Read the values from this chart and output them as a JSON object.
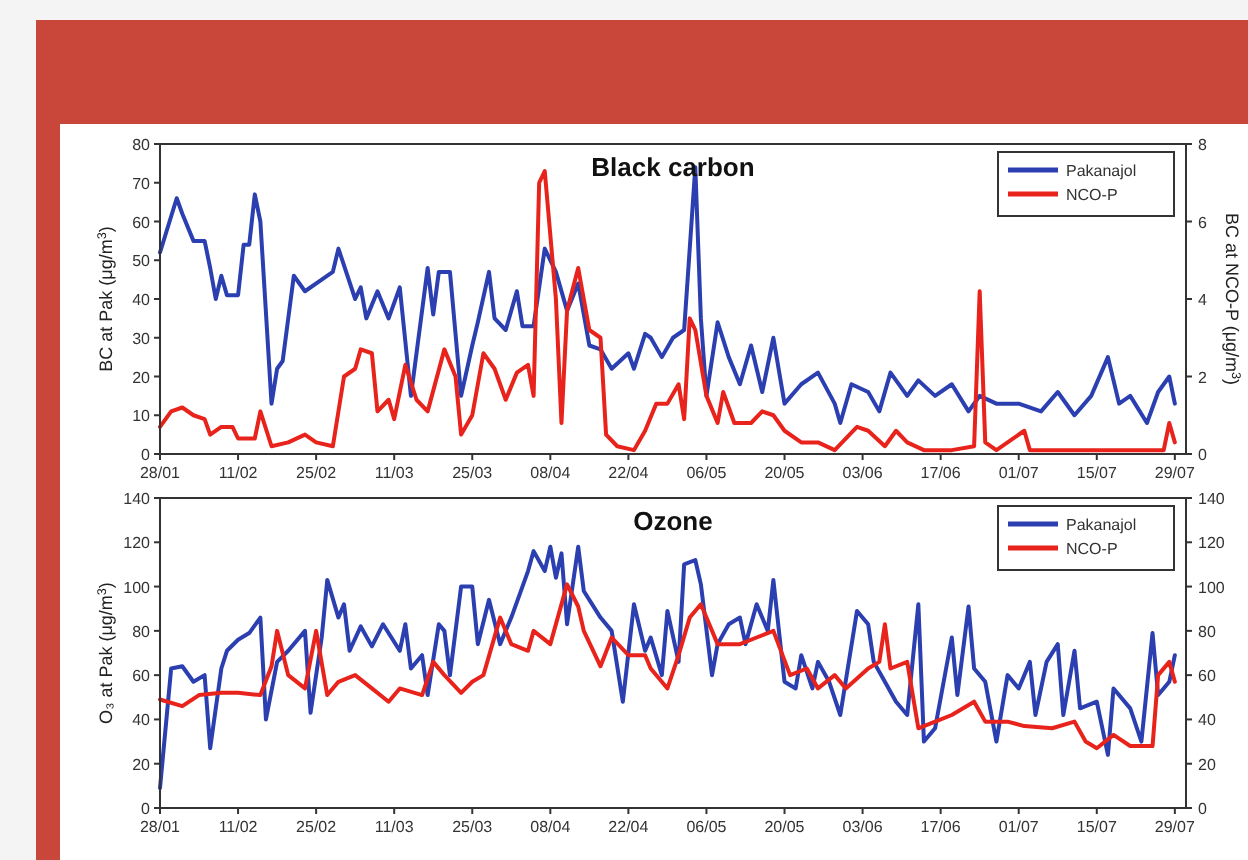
{
  "chart_data": [
    {
      "type": "line",
      "title": "Black carbon",
      "ylabel": "BC at Pak (μg/m$^{3}$)",
      "y2label": "BC at NCO-P (μg/m$^{3}$)",
      "legend": "top right",
      "xlim": [
        "--01-28",
        "--07-31"
      ],
      "xticks": [
        {
          "value": "--01-28",
          "label": "28/01"
        },
        {
          "value": "--02-11",
          "label": "11/02"
        },
        {
          "value": "--02-25",
          "label": "25/02"
        },
        {
          "value": "--03-11",
          "label": "11/03"
        },
        {
          "value": "--03-25",
          "label": "25/03"
        },
        {
          "value": "--04-08",
          "label": "08/04"
        },
        {
          "value": "--04-22",
          "label": "22/04"
        },
        {
          "value": "--05-06",
          "label": "06/05"
        },
        {
          "value": "--05-20",
          "label": "20/05"
        },
        {
          "value": "--06-03",
          "label": "03/06"
        },
        {
          "value": "--06-17",
          "label": "17/06"
        },
        {
          "value": "--07-01",
          "label": "01/07"
        },
        {
          "value": "--07-15",
          "label": "15/07"
        },
        {
          "value": "--07-29",
          "label": "29/07"
        }
      ],
      "ylim": [
        0,
        80
      ],
      "yticks": [
        0,
        10,
        20,
        30,
        40,
        50,
        60,
        70,
        80
      ],
      "y2lim": [
        0,
        8
      ],
      "y2ticks": [
        0,
        2,
        4,
        6,
        8
      ],
      "series": [
        {
          "name": "Pakanajol",
          "color": "#2b3fb0",
          "x": [
            "--01-28",
            "--01-31",
            "--02-01",
            "--02-03",
            "--02-05",
            "--02-06",
            "--02-07",
            "--02-08",
            "--02-09",
            "--02-11",
            "--02-12",
            "--02-13",
            "--02-14",
            "--02-15",
            "--02-17",
            "--02-18",
            "--02-19",
            "--02-21",
            "--02-23",
            "--02-26",
            "--02-28",
            "--03-01",
            "--03-04",
            "--03-05",
            "--03-06",
            "--03-08",
            "--03-10",
            "--03-12",
            "--03-14",
            "--03-17",
            "--03-18",
            "--03-19",
            "--03-21",
            "--03-23",
            "--03-25",
            "--03-26",
            "--03-28",
            "--03-29",
            "--03-31",
            "--04-02",
            "--04-03",
            "--04-05",
            "--04-07",
            "--04-09",
            "--04-11",
            "--04-13",
            "--04-15",
            "--04-17",
            "--04-19",
            "--04-22",
            "--04-23",
            "--04-25",
            "--04-26",
            "--04-28",
            "--04-30",
            "--05-02",
            "--05-04",
            "--05-05",
            "--05-06",
            "--05-08",
            "--05-10",
            "--05-12",
            "--05-14",
            "--05-16",
            "--05-18",
            "--05-20",
            "--05-23",
            "--05-26",
            "--05-29",
            "--05-30",
            "--06-01",
            "--06-04",
            "--06-06",
            "--06-08",
            "--06-11",
            "--06-13",
            "--06-16",
            "--06-19",
            "--06-22",
            "--06-24",
            "--06-27",
            "--07-01",
            "--07-05",
            "--07-08",
            "--07-11",
            "--07-14",
            "--07-17",
            "--07-19",
            "--07-21",
            "--07-24",
            "--07-26",
            "--07-28",
            "--07-29"
          ],
          "values": [
            52,
            66,
            62,
            55,
            55,
            48,
            40,
            46,
            41,
            41,
            54,
            54,
            67,
            60,
            13,
            22,
            24,
            46,
            42,
            45,
            47,
            53,
            40,
            43,
            35,
            42,
            35,
            43,
            15,
            48,
            36,
            47,
            47,
            15,
            28,
            34,
            47,
            35,
            32,
            42,
            33,
            33,
            53,
            47,
            37,
            44,
            28,
            27,
            22,
            26,
            22,
            31,
            30,
            25,
            30,
            32,
            74,
            35,
            15,
            34,
            25,
            18,
            28,
            16,
            30,
            13,
            18,
            21,
            13,
            8,
            18,
            16,
            11,
            21,
            15,
            19,
            15,
            18,
            11,
            15,
            13,
            13,
            11,
            16,
            10,
            15,
            25,
            13,
            15,
            8,
            16,
            20,
            13
          ]
        },
        {
          "name": "NCO-P",
          "color": "#e8231c",
          "axis": "y2",
          "x": [
            "--01-28",
            "--01-30",
            "--02-01",
            "--02-03",
            "--02-05",
            "--02-06",
            "--02-08",
            "--02-10",
            "--02-11",
            "--02-13",
            "--02-14",
            "--02-15",
            "--02-17",
            "--02-20",
            "--02-23",
            "--02-25",
            "--02-28",
            "--03-02",
            "--03-04",
            "--03-05",
            "--03-07",
            "--03-08",
            "--03-10",
            "--03-11",
            "--03-13",
            "--03-15",
            "--03-17",
            "--03-20",
            "--03-22",
            "--03-23",
            "--03-25",
            "--03-27",
            "--03-29",
            "--03-31",
            "--04-02",
            "--04-04",
            "--04-05",
            "--04-06",
            "--04-07",
            "--04-09",
            "--04-10",
            "--04-11",
            "--04-13",
            "--04-15",
            "--04-17",
            "--04-18",
            "--04-20",
            "--04-23",
            "--04-25",
            "--04-27",
            "--04-29",
            "--05-01",
            "--05-02",
            "--05-03",
            "--05-04",
            "--05-06",
            "--05-08",
            "--05-09",
            "--05-11",
            "--05-14",
            "--05-16",
            "--05-18",
            "--05-20",
            "--05-23",
            "--05-26",
            "--05-29",
            "--06-02",
            "--06-04",
            "--06-07",
            "--06-09",
            "--06-11",
            "--06-14",
            "--06-19",
            "--06-23",
            "--06-24",
            "--06-25",
            "--06-27",
            "--07-02",
            "--07-03",
            "--07-11",
            "--07-17",
            "--07-27",
            "--07-28",
            "--07-29"
          ],
          "values": [
            0.7,
            1.1,
            1.2,
            1.0,
            0.9,
            0.5,
            0.7,
            0.7,
            0.4,
            0.4,
            0.4,
            1.1,
            0.2,
            0.3,
            0.5,
            0.3,
            0.2,
            2.0,
            2.2,
            2.7,
            2.6,
            1.1,
            1.4,
            0.9,
            2.3,
            1.4,
            1.1,
            2.7,
            2.0,
            0.5,
            1.0,
            2.6,
            2.2,
            1.4,
            2.1,
            2.3,
            1.5,
            7.0,
            7.3,
            4.0,
            0.8,
            3.7,
            4.8,
            3.2,
            3.0,
            0.5,
            0.2,
            0.1,
            0.6,
            1.3,
            1.3,
            1.8,
            0.9,
            3.5,
            3.2,
            1.5,
            0.8,
            1.6,
            0.8,
            0.8,
            1.1,
            1.0,
            0.6,
            0.3,
            0.3,
            0.1,
            0.7,
            0.6,
            0.2,
            0.6,
            0.3,
            0.1,
            0.1,
            0.2,
            4.2,
            0.3,
            0.1,
            0.6,
            0.1,
            0.1,
            0.1,
            0.1,
            0.8,
            0.3
          ]
        }
      ]
    },
    {
      "type": "line",
      "title": "Ozone",
      "ylabel": "O₃ at Pak (μg/m$^{3}$)",
      "legend": "top right",
      "xlim": [
        "--01-28",
        "--07-31"
      ],
      "xticks": [
        {
          "value": "--01-28",
          "label": "28/01"
        },
        {
          "value": "--02-11",
          "label": "11/02"
        },
        {
          "value": "--02-25",
          "label": "25/02"
        },
        {
          "value": "--03-11",
          "label": "11/03"
        },
        {
          "value": "--03-25",
          "label": "25/03"
        },
        {
          "value": "--04-08",
          "label": "08/04"
        },
        {
          "value": "--04-22",
          "label": "22/04"
        },
        {
          "value": "--05-06",
          "label": "06/05"
        },
        {
          "value": "--05-20",
          "label": "20/05"
        },
        {
          "value": "--06-03",
          "label": "03/06"
        },
        {
          "value": "--06-17",
          "label": "17/06"
        },
        {
          "value": "--07-01",
          "label": "01/07"
        },
        {
          "value": "--07-15",
          "label": "15/07"
        },
        {
          "value": "--07-29",
          "label": "29/07"
        }
      ],
      "ylim": [
        0,
        140
      ],
      "yticks": [
        0,
        20,
        40,
        60,
        80,
        100,
        120,
        140
      ],
      "y2lim": [
        0,
        140
      ],
      "y2ticks": [
        0,
        20,
        40,
        60,
        80,
        100,
        120,
        140
      ],
      "series": [
        {
          "name": "Pakanajol",
          "color": "#2b3fb0",
          "x": [
            "--01-28",
            "--01-30",
            "--02-01",
            "--02-03",
            "--02-05",
            "--02-06",
            "--02-08",
            "--02-09",
            "--02-11",
            "--02-13",
            "--02-15",
            "--02-16",
            "--02-18",
            "--02-20",
            "--02-23",
            "--02-24",
            "--02-26",
            "--02-27",
            "--03-01",
            "--03-02",
            "--03-03",
            "--03-05",
            "--03-07",
            "--03-09",
            "--03-12",
            "--03-13",
            "--03-14",
            "--03-16",
            "--03-17",
            "--03-19",
            "--03-20",
            "--03-21",
            "--03-23",
            "--03-25",
            "--03-26",
            "--03-28",
            "--03-30",
            "--04-01",
            "--04-04",
            "--04-05",
            "--04-07",
            "--04-08",
            "--04-09",
            "--04-10",
            "--04-11",
            "--04-13",
            "--04-14",
            "--04-17",
            "--04-19",
            "--04-21",
            "--04-23",
            "--04-25",
            "--04-26",
            "--04-28",
            "--04-29",
            "--05-01",
            "--05-02",
            "--05-04",
            "--05-05",
            "--05-07",
            "--05-08",
            "--05-10",
            "--05-12",
            "--05-13",
            "--05-15",
            "--05-17",
            "--05-18",
            "--05-20",
            "--05-22",
            "--05-23",
            "--05-25",
            "--05-26",
            "--05-28",
            "--05-30",
            "--06-02",
            "--06-04",
            "--06-05",
            "--06-07",
            "--06-09",
            "--06-11",
            "--06-13",
            "--06-14",
            "--06-16",
            "--06-19",
            "--06-20",
            "--06-22",
            "--06-23",
            "--06-25",
            "--06-27",
            "--06-29",
            "--07-01",
            "--07-03",
            "--07-04",
            "--07-06",
            "--07-08",
            "--07-09",
            "--07-11",
            "--07-12",
            "--07-15",
            "--07-17",
            "--07-18",
            "--07-21",
            "--07-23",
            "--07-25",
            "--07-26",
            "--07-28",
            "--07-29"
          ],
          "values": [
            9,
            63,
            64,
            57,
            60,
            27,
            63,
            71,
            76,
            79,
            86,
            40,
            66,
            71,
            80,
            43,
            77,
            103,
            86,
            92,
            71,
            82,
            73,
            83,
            71,
            83,
            63,
            69,
            51,
            83,
            80,
            60,
            100,
            100,
            74,
            94,
            74,
            86,
            107,
            116,
            107,
            118,
            104,
            115,
            83,
            118,
            98,
            86,
            80,
            48,
            92,
            71,
            77,
            60,
            89,
            66,
            110,
            112,
            101,
            60,
            74,
            83,
            86,
            74,
            92,
            80,
            103,
            57,
            54,
            69,
            54,
            66,
            57,
            42,
            89,
            83,
            66,
            57,
            48,
            42,
            92,
            30,
            36,
            77,
            51,
            91,
            63,
            57,
            30,
            60,
            54,
            66,
            42,
            66,
            74,
            42,
            71,
            45,
            48,
            24,
            54,
            45,
            30,
            79,
            51,
            57,
            69
          ]
        },
        {
          "name": "NCO-P",
          "color": "#e8231c",
          "axis": "y2",
          "x": [
            "--01-28",
            "--02-01",
            "--02-04",
            "--02-08",
            "--02-11",
            "--02-15",
            "--02-17",
            "--02-18",
            "--02-20",
            "--02-23",
            "--02-25",
            "--02-27",
            "--03-01",
            "--03-04",
            "--03-07",
            "--03-10",
            "--03-12",
            "--03-16",
            "--03-18",
            "--03-20",
            "--03-23",
            "--03-25",
            "--03-27",
            "--03-30",
            "--04-01",
            "--04-04",
            "--04-05",
            "--04-08",
            "--04-11",
            "--04-13",
            "--04-14",
            "--04-17",
            "--04-19",
            "--04-22",
            "--04-25",
            "--04-26",
            "--04-29",
            "--05-01",
            "--05-03",
            "--05-05",
            "--05-08",
            "--05-12",
            "--05-15",
            "--05-18",
            "--05-21",
            "--05-24",
            "--05-26",
            "--05-29",
            "--05-31",
            "--06-04",
            "--06-06",
            "--06-07",
            "--06-08",
            "--06-11",
            "--06-13",
            "--06-16",
            "--06-19",
            "--06-23",
            "--06-25",
            "--06-29",
            "--07-02",
            "--07-07",
            "--07-11",
            "--07-13",
            "--07-15",
            "--07-18",
            "--07-21",
            "--07-25",
            "--07-26",
            "--07-28",
            "--07-29"
          ],
          "values": [
            49,
            46,
            51,
            52,
            52,
            51,
            64,
            80,
            60,
            54,
            80,
            51,
            57,
            60,
            54,
            48,
            54,
            51,
            66,
            60,
            52,
            57,
            60,
            86,
            74,
            71,
            80,
            74,
            101,
            91,
            80,
            64,
            77,
            69,
            69,
            63,
            54,
            69,
            86,
            92,
            74,
            74,
            77,
            80,
            60,
            63,
            54,
            60,
            54,
            63,
            66,
            83,
            63,
            66,
            36,
            39,
            42,
            48,
            39,
            39,
            37,
            36,
            39,
            30,
            27,
            33,
            28,
            28,
            60,
            66,
            57
          ]
        }
      ]
    }
  ]
}
